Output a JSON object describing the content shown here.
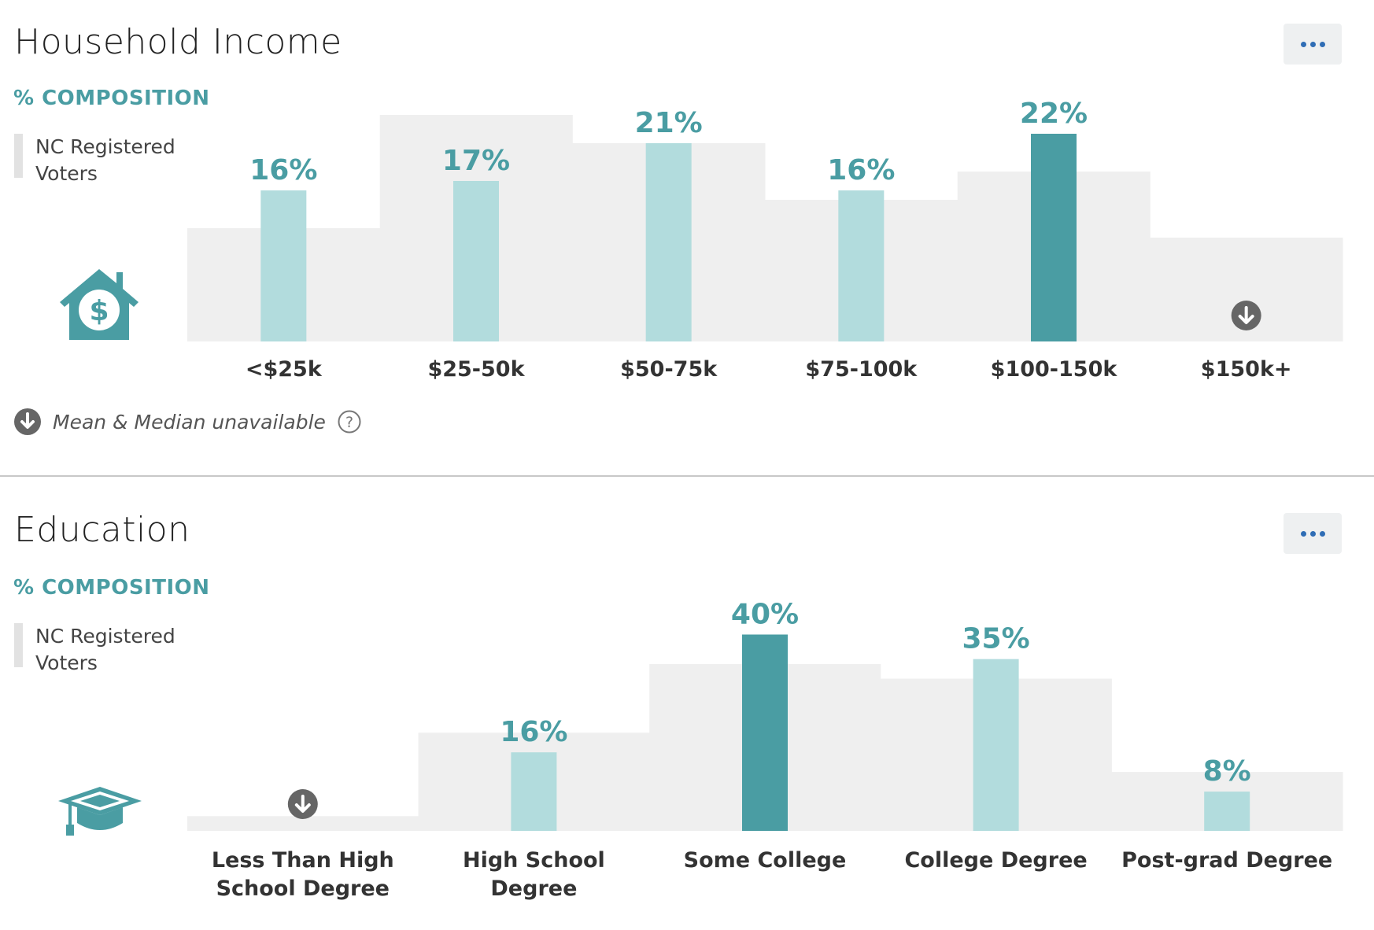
{
  "income": {
    "title": "Household Income",
    "subtitle": "% COMPOSITION",
    "legend_label": "NC Registered Voters",
    "icon": "house-dollar-icon",
    "footnote": "Mean & Median unavailable",
    "chart_data": {
      "type": "bar",
      "categories": [
        "<$25k",
        "$25-50k",
        "$50-75k",
        "$75-100k",
        "$100-150k",
        "$150k+"
      ],
      "series": [
        {
          "name": "",
          "values": [
            16,
            17,
            21,
            16,
            22,
            null
          ],
          "value_labels": [
            "16%",
            "17%",
            "21%",
            "16%",
            "22%",
            ""
          ],
          "highlight_index": 4
        },
        {
          "name": "NC Registered Voters",
          "values": [
            12,
            24,
            21,
            15,
            18,
            11
          ]
        }
      ],
      "ylim": [
        0,
        25
      ],
      "below_threshold_categories": [
        "$150k+"
      ],
      "grid": false,
      "legend": "left"
    }
  },
  "education": {
    "title": "Education",
    "subtitle": "% COMPOSITION",
    "legend_label": "NC Registered Voters",
    "icon": "graduation-cap-icon",
    "chart_data": {
      "type": "bar",
      "categories": [
        "Less Than High School Degree",
        "High School Degree",
        "Some College",
        "College Degree",
        "Post-grad Degree"
      ],
      "series": [
        {
          "name": "",
          "values": [
            null,
            16,
            40,
            35,
            8
          ],
          "value_labels": [
            "",
            "16%",
            "40%",
            "35%",
            "8%"
          ],
          "highlight_index": 2
        },
        {
          "name": "NC Registered Voters",
          "values": [
            3,
            20,
            34,
            31,
            12
          ]
        }
      ],
      "ylim": [
        0,
        42
      ],
      "below_threshold_categories": [
        "Less Than High School Degree"
      ],
      "grid": false,
      "legend": "left"
    }
  },
  "colors": {
    "bar": "#b2dcdd",
    "bar_highlight": "#4a9da3",
    "baseline": "#efefef",
    "label": "#4a9da3",
    "more_dots": "#2f6db5",
    "down_icon": "#666666"
  }
}
